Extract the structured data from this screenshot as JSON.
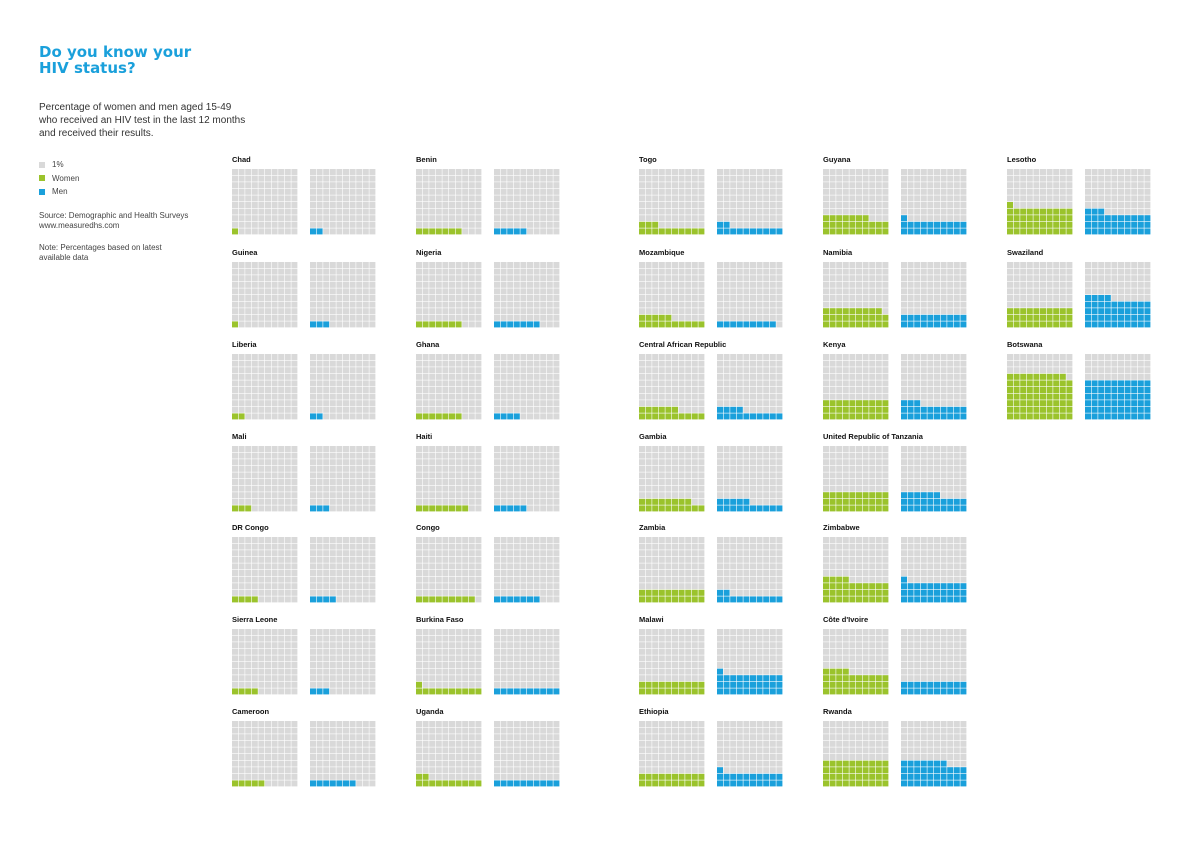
{
  "title_lines": [
    "Do you know your",
    "HIV status?"
  ],
  "subtitle_lines": [
    "Percentage of women and men aged 15-49",
    "who received an HIV test in the last 12 months",
    "and received their results."
  ],
  "legend": [
    {
      "label": "1%",
      "color": "#d9d9d9"
    },
    {
      "label": "Women",
      "color": "#9bc32c"
    },
    {
      "label": "Men",
      "color": "#1aa0db"
    }
  ],
  "source_lines": [
    "Source: Demographic and Health Surveys",
    "www.measuredhs.com"
  ],
  "note_lines": [
    "Note: Percentages based on latest",
    "available data"
  ],
  "colors": {
    "empty": "#d9d9d9",
    "women": "#9bc32c",
    "men": "#1aa0db"
  },
  "chart_data": {
    "type": "waffle",
    "unit": "1%",
    "series": [
      {
        "name": "Women",
        "key": "women"
      },
      {
        "name": "Men",
        "key": "men"
      }
    ],
    "countries": [
      {
        "name": "Chad",
        "women": 1,
        "men": 2
      },
      {
        "name": "Guinea",
        "women": 1,
        "men": 3
      },
      {
        "name": "Liberia",
        "women": 2,
        "men": 2
      },
      {
        "name": "Mali",
        "women": 3,
        "men": 3
      },
      {
        "name": "DR Congo",
        "women": 4,
        "men": 4
      },
      {
        "name": "Sierra Leone",
        "women": 4,
        "men": 3
      },
      {
        "name": "Cameroon",
        "women": 5,
        "men": 7
      },
      {
        "name": "Benin",
        "women": 7,
        "men": 5
      },
      {
        "name": "Nigeria",
        "women": 7,
        "men": 7
      },
      {
        "name": "Ghana",
        "women": 7,
        "men": 4
      },
      {
        "name": "Haiti",
        "women": 8,
        "men": 5
      },
      {
        "name": "Congo",
        "women": 9,
        "men": 7
      },
      {
        "name": "Burkina Faso",
        "women": 11,
        "men": 10
      },
      {
        "name": "Uganda",
        "women": 12,
        "men": 10
      },
      {
        "name": "Togo",
        "women": 13,
        "men": 12
      },
      {
        "name": "Mozambique",
        "women": 15,
        "men": 9
      },
      {
        "name": "Central African Republic",
        "women": 16,
        "men": 14
      },
      {
        "name": "Gambia",
        "women": 18,
        "men": 15
      },
      {
        "name": "Zambia",
        "women": 20,
        "men": 12
      },
      {
        "name": "Malawi",
        "women": 20,
        "men": 31
      },
      {
        "name": "Ethiopia",
        "women": 20,
        "men": 21
      },
      {
        "name": "Guyana",
        "women": 27,
        "men": 21
      },
      {
        "name": "Namibia",
        "women": 29,
        "men": 20
      },
      {
        "name": "Kenya",
        "women": 30,
        "men": 23
      },
      {
        "name": "United Republic of Tanzania",
        "women": 30,
        "men": 26
      },
      {
        "name": "Zimbabwe",
        "women": 34,
        "men": 31
      },
      {
        "name": "Côte d'Ivoire",
        "women": 34,
        "men": 20
      },
      {
        "name": "Rwanda",
        "women": 40,
        "men": 37
      },
      {
        "name": "Lesotho",
        "women": 41,
        "men": 33
      },
      {
        "name": "Swaziland",
        "women": 30,
        "men": 44
      },
      {
        "name": "Botswana",
        "women": 69,
        "men": 60
      }
    ]
  }
}
